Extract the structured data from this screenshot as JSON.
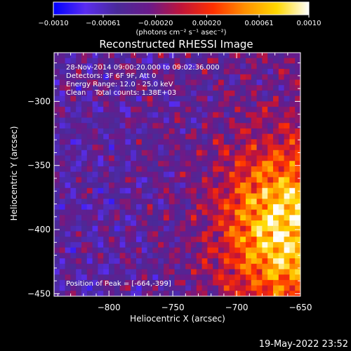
{
  "chart_data": {
    "type": "heatmap",
    "title": "Reconstructed RHESSI Image",
    "xlabel": "Heliocentric X (arcsec)",
    "ylabel": "Heliocentric Y (arcsec)",
    "xlim": [
      -843,
      -650
    ],
    "ylim": [
      -452,
      -262
    ],
    "x_ticks": [
      -800,
      -750,
      -700,
      -650
    ],
    "x_tick_labels": [
      "−800",
      "−750",
      "−700",
      "−650"
    ],
    "y_ticks": [
      -450,
      -400,
      -350,
      -300
    ],
    "y_tick_labels": [
      "−450",
      "−400",
      "−350",
      "−300"
    ],
    "colorbar": {
      "range": [
        -0.001,
        0.001
      ],
      "ticks": [
        -0.001,
        -0.00061,
        -0.0002,
        0.0002,
        0.00061,
        0.001
      ],
      "tick_labels": [
        "−0.0010",
        "−0.00061",
        "−0.00020",
        "0.00020",
        "0.00061",
        "0.0010"
      ],
      "units": "(photons cm⁻² s⁻¹ asec⁻²)",
      "stops": [
        "#0000ff",
        "#5a2cf0",
        "#4a2a99",
        "#6a1a8a",
        "#c0143a",
        "#ff3000",
        "#ff9000",
        "#ffd800",
        "#ffffff"
      ]
    },
    "annotations": {
      "time_range": "28-Nov-2014 09:00:20.000 to 09:02:36.000",
      "detectors": "Detectors: 3F 6F 9F, Att 0",
      "energy_range": "Energy Range: 12.0 - 25.0 keV",
      "method_counts": "Clean    Total counts: 1.38E+03",
      "peak": "Position of Peak = [-664,-399]"
    },
    "peak_position": [
      -664,
      -399
    ]
  },
  "footer": {
    "timestamp": "19-May-2022 23:52"
  }
}
